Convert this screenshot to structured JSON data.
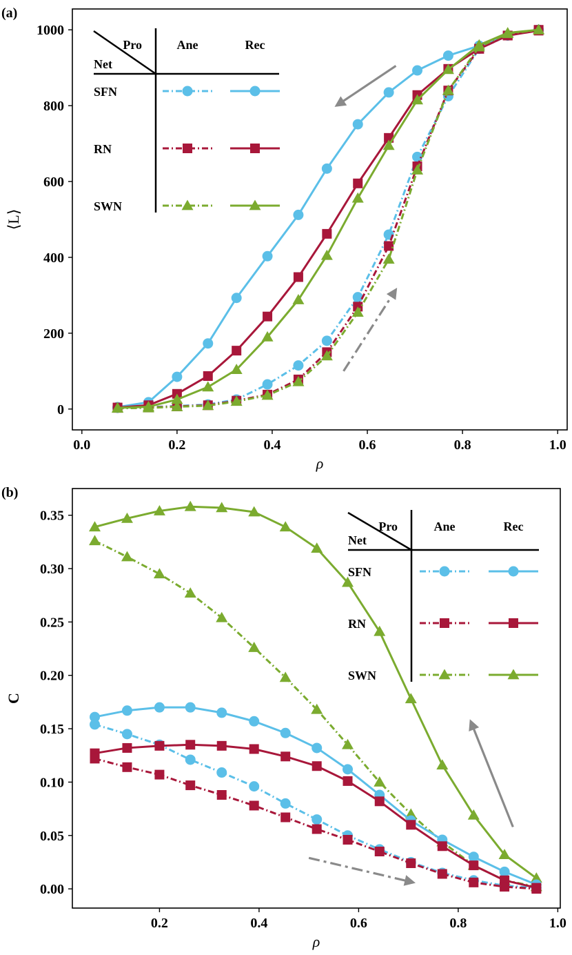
{
  "chart_data": [
    {
      "type": "line",
      "panel_label": "(a)",
      "xlabel": "ρ",
      "ylabel": "⟨L⟩",
      "xlim": [
        -0.02,
        1.02
      ],
      "ylim": [
        -55,
        1055
      ],
      "xticks": [
        0.0,
        0.2,
        0.4,
        0.6,
        0.8,
        1.0
      ],
      "xtick_labels": [
        "0.0",
        "0.2",
        "0.4",
        "0.6",
        "0.8",
        "1.0"
      ],
      "yticks": [
        0,
        200,
        400,
        600,
        800,
        1000
      ],
      "ytick_labels": [
        "0",
        "200",
        "400",
        "600",
        "800",
        "1000"
      ],
      "grid": false,
      "legend": {
        "placement": "top-left",
        "corner_top": "Pro",
        "corner_bottom": "Net",
        "col1": "Ane",
        "col2": "Rec",
        "rows": [
          "SFN",
          "RN",
          "SWN"
        ]
      },
      "x": [
        0.075,
        0.14,
        0.2,
        0.265,
        0.325,
        0.39,
        0.455,
        0.515,
        0.58,
        0.645,
        0.705,
        0.77,
        0.835,
        0.895,
        0.96
      ],
      "series": [
        {
          "network": "SFN",
          "process": "Ane",
          "color": "#5bbfe8",
          "marker": "circle",
          "dash": "dashdot",
          "values": [
            3,
            5,
            8,
            12,
            25,
            65,
            115,
            180,
            295,
            460,
            665,
            825,
            950,
            985,
            1000
          ]
        },
        {
          "network": "SFN",
          "process": "Rec",
          "color": "#5bbfe8",
          "marker": "circle",
          "dash": "solid",
          "values": [
            5,
            18,
            85,
            173,
            293,
            403,
            512,
            634,
            751,
            835,
            893,
            932,
            958,
            985,
            1000
          ]
        },
        {
          "network": "RN",
          "process": "Ane",
          "color": "#a8173a",
          "marker": "square",
          "dash": "dashdot",
          "values": [
            3,
            4,
            7,
            10,
            22,
            38,
            78,
            150,
            270,
            430,
            640,
            840,
            950,
            985,
            1000
          ]
        },
        {
          "network": "RN",
          "process": "Rec",
          "color": "#a8173a",
          "marker": "square",
          "dash": "solid",
          "values": [
            4,
            10,
            40,
            87,
            154,
            244,
            348,
            462,
            595,
            715,
            828,
            897,
            950,
            985,
            998
          ]
        },
        {
          "network": "SWN",
          "process": "Ane",
          "color": "#7bab2f",
          "marker": "triangle",
          "dash": "dashdot",
          "values": [
            2,
            3,
            6,
            9,
            20,
            36,
            72,
            140,
            255,
            395,
            630,
            840,
            955,
            990,
            1000
          ]
        },
        {
          "network": "SWN",
          "process": "Rec",
          "color": "#7bab2f",
          "marker": "triangle",
          "dash": "solid",
          "values": [
            3,
            6,
            25,
            58,
            104,
            190,
            288,
            405,
            556,
            695,
            815,
            895,
            960,
            992,
            1000
          ]
        }
      ],
      "annotations": [
        {
          "type": "arrow",
          "style": "solid",
          "color": "#8a8a8a",
          "from": [
            0.66,
            905
          ],
          "to": [
            0.535,
            800
          ]
        },
        {
          "type": "arrow",
          "style": "dashdot",
          "color": "#8a8a8a",
          "from": [
            0.55,
            100
          ],
          "to": [
            0.66,
            315
          ]
        }
      ]
    },
    {
      "type": "line",
      "panel_label": "(b)",
      "xlabel": "ρ",
      "ylabel": "C",
      "xlim": [
        0.025,
        1.005
      ],
      "ylim": [
        -0.018,
        0.375
      ],
      "xticks": [
        0.2,
        0.4,
        0.6,
        0.8,
        1.0
      ],
      "xtick_labels": [
        "0.2",
        "0.4",
        "0.6",
        "0.8",
        "1.0"
      ],
      "yticks": [
        0.0,
        0.05,
        0.1,
        0.15,
        0.2,
        0.25,
        0.3,
        0.35
      ],
      "ytick_labels": [
        "0.00",
        "0.05",
        "0.10",
        "0.15",
        "0.20",
        "0.25",
        "0.30",
        "0.35"
      ],
      "grid": false,
      "legend": {
        "placement": "top-right",
        "corner_top": "Pro",
        "corner_bottom": "Net",
        "col1": "Ane",
        "col2": "Rec",
        "rows": [
          "SFN",
          "RN",
          "SWN"
        ]
      },
      "x": [
        0.07,
        0.135,
        0.2,
        0.262,
        0.325,
        0.39,
        0.453,
        0.516,
        0.578,
        0.642,
        0.705,
        0.768,
        0.831,
        0.893,
        0.957
      ],
      "series": [
        {
          "network": "SWN",
          "process": "Rec",
          "color": "#7bab2f",
          "marker": "triangle",
          "dash": "solid",
          "values": [
            0.339,
            0.347,
            0.354,
            0.358,
            0.357,
            0.353,
            0.339,
            0.319,
            0.287,
            0.241,
            0.178,
            0.116,
            0.069,
            0.032,
            0.01
          ]
        },
        {
          "network": "SWN",
          "process": "Ane",
          "color": "#7bab2f",
          "marker": "triangle",
          "dash": "dashdot",
          "values": [
            0.326,
            0.311,
            0.295,
            0.277,
            0.254,
            0.226,
            0.198,
            0.168,
            0.135,
            0.1,
            0.07,
            0.044,
            0.022,
            0.008,
            0.002
          ]
        },
        {
          "network": "SFN",
          "process": "Rec",
          "color": "#5bbfe8",
          "marker": "circle",
          "dash": "solid",
          "values": [
            0.161,
            0.167,
            0.17,
            0.17,
            0.165,
            0.157,
            0.146,
            0.132,
            0.112,
            0.088,
            0.064,
            0.046,
            0.03,
            0.016,
            0.004
          ]
        },
        {
          "network": "SFN",
          "process": "Ane",
          "color": "#5bbfe8",
          "marker": "circle",
          "dash": "dashdot",
          "values": [
            0.154,
            0.145,
            0.135,
            0.121,
            0.109,
            0.096,
            0.08,
            0.065,
            0.05,
            0.037,
            0.025,
            0.015,
            0.008,
            0.003,
            0.001
          ]
        },
        {
          "network": "RN",
          "process": "Rec",
          "color": "#a8173a",
          "marker": "square",
          "dash": "solid",
          "values": [
            0.127,
            0.132,
            0.134,
            0.135,
            0.134,
            0.131,
            0.124,
            0.115,
            0.101,
            0.082,
            0.06,
            0.04,
            0.022,
            0.008,
            0.001
          ]
        },
        {
          "network": "RN",
          "process": "Ane",
          "color": "#a8173a",
          "marker": "square",
          "dash": "dashdot",
          "values": [
            0.122,
            0.114,
            0.107,
            0.097,
            0.088,
            0.078,
            0.067,
            0.056,
            0.046,
            0.035,
            0.024,
            0.014,
            0.006,
            0.002,
            0.0
          ]
        }
      ],
      "annotations": [
        {
          "type": "arrow",
          "style": "solid",
          "color": "#8a8a8a",
          "from": [
            0.91,
            0.058
          ],
          "to": [
            0.825,
            0.157
          ]
        },
        {
          "type": "arrow",
          "style": "dashdot",
          "color": "#8a8a8a",
          "from": [
            0.5,
            0.029
          ],
          "to": [
            0.71,
            0.006
          ]
        }
      ]
    }
  ]
}
